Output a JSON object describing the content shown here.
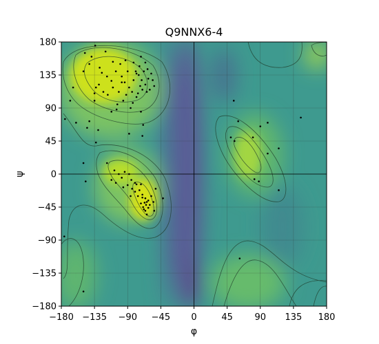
{
  "chart_data": {
    "type": "scatter",
    "title": "Q9NNX6-4",
    "xlabel": "φ",
    "ylabel": "ψ",
    "xlim": [
      -180,
      180
    ],
    "ylim": [
      -180,
      180
    ],
    "xticks": [
      -180,
      -135,
      -90,
      -45,
      0,
      45,
      90,
      135,
      180
    ],
    "yticks": [
      -180,
      -135,
      -90,
      -45,
      0,
      45,
      90,
      135,
      180
    ],
    "xtick_labels": [
      "−180",
      "−135",
      "−90",
      "−45",
      "0",
      "45",
      "90",
      "135",
      "180"
    ],
    "ytick_labels": [
      "−180",
      "−135",
      "−90",
      "−45",
      "0",
      "45",
      "90",
      "135",
      "180"
    ],
    "grid": true,
    "background": "Ramachandran density (viridis) with contour lines",
    "colors": {
      "point": "#000000",
      "high_density": "#d8e219",
      "low_density": "#6a3f8f",
      "grid": "#2f2f2f"
    },
    "points": [
      [
        -148,
        165
      ],
      [
        -139,
        160
      ],
      [
        -134,
        175
      ],
      [
        -120,
        167
      ],
      [
        -110,
        153
      ],
      [
        -100,
        150
      ],
      [
        -93,
        155
      ],
      [
        -82,
        152
      ],
      [
        -74,
        147
      ],
      [
        -66,
        152
      ],
      [
        -72,
        160
      ],
      [
        -142,
        150
      ],
      [
        -150,
        140
      ],
      [
        -128,
        145
      ],
      [
        -125,
        138
      ],
      [
        -118,
        133
      ],
      [
        -112,
        127
      ],
      [
        -106,
        140
      ],
      [
        -98,
        133
      ],
      [
        -94,
        125
      ],
      [
        -88,
        118
      ],
      [
        -82,
        128
      ],
      [
        -79,
        140
      ],
      [
        -75,
        135
      ],
      [
        -71,
        128
      ],
      [
        -66,
        122
      ],
      [
        -62,
        130
      ],
      [
        -58,
        137
      ],
      [
        -56,
        128
      ],
      [
        -54,
        120
      ],
      [
        -60,
        115
      ],
      [
        -64,
        112
      ],
      [
        -70,
        115
      ],
      [
        -76,
        110
      ],
      [
        -84,
        112
      ],
      [
        -92,
        108
      ],
      [
        -102,
        112
      ],
      [
        -110,
        118
      ],
      [
        -117,
        108
      ],
      [
        -123,
        112
      ],
      [
        -135,
        110
      ],
      [
        -135,
        100
      ],
      [
        -129,
        122
      ],
      [
        -78,
        105
      ],
      [
        -83,
        97
      ],
      [
        -96,
        100
      ],
      [
        -104,
        95
      ],
      [
        -112,
        85
      ],
      [
        -105,
        88
      ],
      [
        -86,
        90
      ],
      [
        -90,
        140
      ],
      [
        -68,
        140
      ],
      [
        -63,
        143
      ],
      [
        -78,
        137
      ],
      [
        -73,
        120
      ],
      [
        -98,
        125
      ],
      [
        -133,
        118
      ],
      [
        -164,
        118
      ],
      [
        -168,
        100
      ],
      [
        -175,
        75
      ],
      [
        -160,
        70
      ],
      [
        -142,
        72
      ],
      [
        -145,
        63
      ],
      [
        -130,
        60
      ],
      [
        -133,
        43
      ],
      [
        -150,
        15
      ],
      [
        -147,
        -10
      ],
      [
        -176,
        -85
      ],
      [
        -150,
        -160
      ],
      [
        -72,
        85
      ],
      [
        -69,
        67
      ],
      [
        -70,
        52
      ],
      [
        -88,
        55
      ],
      [
        -118,
        15
      ],
      [
        -108,
        5
      ],
      [
        -102,
        0
      ],
      [
        -98,
        -5
      ],
      [
        -106,
        -12
      ],
      [
        -94,
        3
      ],
      [
        -88,
        0
      ],
      [
        -85,
        -8
      ],
      [
        -90,
        -15
      ],
      [
        -112,
        -8
      ],
      [
        -96,
        -18
      ],
      [
        -84,
        -20
      ],
      [
        -78,
        -14
      ],
      [
        -74,
        -22
      ],
      [
        -70,
        -28
      ],
      [
        -66,
        -33
      ],
      [
        -64,
        -38
      ],
      [
        -60,
        -42
      ],
      [
        -62,
        -46
      ],
      [
        -68,
        -48
      ],
      [
        -72,
        -40
      ],
      [
        -70,
        -32
      ],
      [
        -58,
        -30
      ],
      [
        -55,
        -38
      ],
      [
        -54,
        -50
      ],
      [
        -64,
        -55
      ],
      [
        -76,
        -30
      ],
      [
        -80,
        -24
      ],
      [
        -86,
        -30
      ],
      [
        -65,
        -42
      ],
      [
        -62,
        -36
      ],
      [
        -67,
        -39
      ],
      [
        -69,
        -45
      ],
      [
        -66,
        -50
      ],
      [
        -42,
        -33
      ],
      [
        -52,
        -20
      ],
      [
        -72,
        -14
      ],
      [
        -80,
        -12
      ],
      [
        50,
        50
      ],
      [
        55,
        45
      ],
      [
        60,
        72
      ],
      [
        80,
        50
      ],
      [
        90,
        65
      ],
      [
        100,
        70
      ],
      [
        82,
        -7
      ],
      [
        88,
        -10
      ],
      [
        100,
        28
      ],
      [
        115,
        -22
      ],
      [
        145,
        77
      ],
      [
        62,
        -115
      ],
      [
        115,
        35
      ],
      [
        54,
        100
      ]
    ]
  }
}
